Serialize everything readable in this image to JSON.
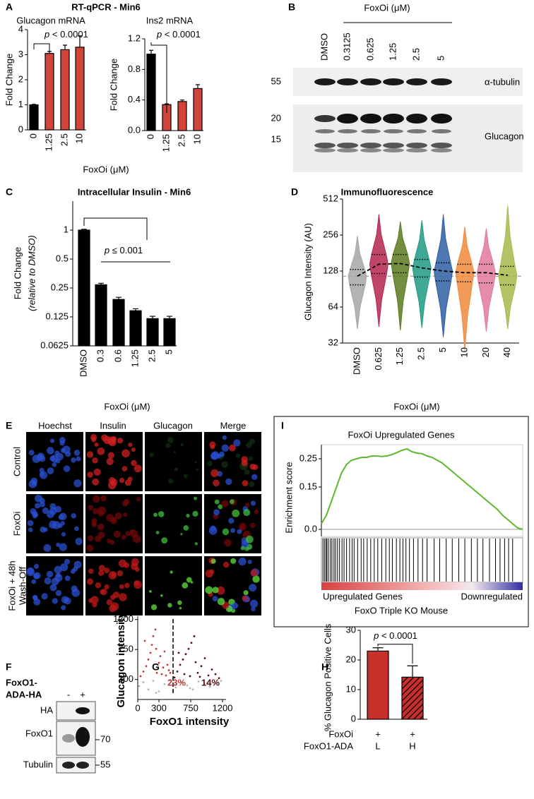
{
  "panel_labels": [
    "A",
    "B",
    "C",
    "D",
    "E",
    "F",
    "G",
    "H",
    "I"
  ],
  "panel_a_title": "RT-qPCR - Min6",
  "blot_b": {
    "treatment_label": "FoxOi (μM)",
    "lanes": [
      "DMSO",
      "0.3125",
      "0.625",
      "1.25",
      "2.5",
      "5"
    ],
    "markers": [
      55,
      20,
      15
    ],
    "bands": [
      "α-tubulin",
      "Glucagon"
    ]
  },
  "micrographs_e": {
    "columns": [
      "Hoechst",
      "Insulin",
      "Glucagon",
      "Merge"
    ],
    "rows": [
      [
        "Control"
      ],
      [
        "FoxOi"
      ],
      [
        "FoxOi + 48h",
        "Wash-Off"
      ]
    ]
  },
  "blot_f": {
    "construct": [
      "FoxO1-",
      "ADA-HA"
    ],
    "lanes": [
      "-",
      "+"
    ],
    "bands": [
      "HA",
      "FoxO1",
      "Tubulin"
    ],
    "markers": [
      70,
      55
    ]
  },
  "chart_data": [
    {
      "type": "bar",
      "title": "Glucagon mRNA",
      "y_label": "Fold Change",
      "x_label": "FoxOi (μM)",
      "categories": [
        "0",
        "1.25",
        "2.5",
        "10"
      ],
      "values": [
        1,
        3.05,
        3.2,
        3.3
      ],
      "errors": [
        0.02,
        0.08,
        0.18,
        0.45
      ],
      "colors": [
        "#000000",
        "#d0443a",
        "#d0443a",
        "#d0443a"
      ],
      "ylim": [
        0,
        4
      ],
      "yticks": [
        0,
        1,
        2,
        3,
        4
      ],
      "annotation": {
        "italic": "p",
        "text": "< 0.0001"
      }
    },
    {
      "type": "bar",
      "title": "Ins2 mRNA",
      "y_label": "Fold Change",
      "categories": [
        "0",
        "1.25",
        "2.5",
        "10"
      ],
      "values": [
        1,
        0.34,
        0.38,
        0.55
      ],
      "errors": [
        0.05,
        0.01,
        0.02,
        0.05
      ],
      "colors": [
        "#000000",
        "#d0443a",
        "#d0443a",
        "#d0443a"
      ],
      "ylim": [
        0,
        1.2
      ],
      "yticks": [
        {
          "value": 0,
          "label": "0.0"
        },
        0.4,
        0.8,
        1.2
      ],
      "annotation": {
        "italic": "p",
        "text": "< 0.0001"
      }
    },
    {
      "type": "bar",
      "title": "Intracellular Insulin - Min6",
      "y_label": [
        "Fold Change",
        "(relative to DMSO)"
      ],
      "x_label": "FoxOi (μM)",
      "categories": [
        "DMSO",
        "0.3",
        "0.6",
        "1.25",
        "2.5",
        "5"
      ],
      "values": [
        1,
        0.27,
        0.19,
        0.145,
        0.12,
        0.12
      ],
      "errors": [
        0.02,
        0.01,
        0.01,
        0.007,
        0.007,
        0.007
      ],
      "color": "#000000",
      "y_scale": "log2",
      "ylim": [
        0.0625,
        2
      ],
      "yticks": [
        0.0625,
        0.125,
        0.25,
        0.5,
        1
      ],
      "annotation": {
        "italic": "p",
        "text": "≤ 0.001"
      }
    },
    {
      "type": "violin",
      "title": "Immunofluorescence",
      "y_label": "Glucagon Intensity (AU)",
      "x_label": "FoxOi (μM)",
      "categories": [
        "DMSO",
        "0.625",
        "1.25",
        "2.5",
        "5",
        "10",
        "20",
        "40"
      ],
      "colors": [
        "#a6a6a6",
        "#b5264f",
        "#5b7a1f",
        "#1f9a83",
        "#2e5fa3",
        "#f08a3c",
        "#e0799a",
        "#a8b84a"
      ],
      "min": [
        42,
        44,
        41,
        43,
        36,
        28,
        40,
        42
      ],
      "q1": [
        98,
        122,
        124,
        114,
        106,
        104,
        102,
        98
      ],
      "median": [
        116,
        146,
        148,
        136,
        128,
        124,
        124,
        118
      ],
      "q3": [
        132,
        176,
        176,
        160,
        150,
        146,
        146,
        140
      ],
      "max": [
        250,
        380,
        330,
        340,
        380,
        300,
        290,
        450
      ],
      "reference_line": 116,
      "y_scale": "log2",
      "ylim": [
        32,
        512
      ],
      "yticks": [
        32,
        64,
        128,
        256,
        512
      ]
    },
    {
      "type": "line",
      "title": "FoxOi Upregulated Genes",
      "y_label": "Enrichment score",
      "x_label": "FoxO Triple KO Mouse",
      "left_label": "Upregulated Genes",
      "right_label": "Downregulated",
      "color": "#5cb82e",
      "x": [
        0,
        1,
        2,
        3,
        4,
        5,
        6,
        7,
        8,
        9,
        10,
        11,
        12,
        13,
        14,
        15,
        16,
        17,
        18,
        19,
        20,
        21,
        22,
        23,
        24,
        25,
        26,
        27,
        28,
        29,
        30,
        31,
        32,
        33,
        34,
        35,
        36,
        37,
        38,
        39,
        40
      ],
      "values": [
        0.02,
        0.05,
        0.1,
        0.15,
        0.2,
        0.23,
        0.245,
        0.25,
        0.255,
        0.255,
        0.26,
        0.26,
        0.258,
        0.26,
        0.265,
        0.272,
        0.28,
        0.285,
        0.275,
        0.27,
        0.268,
        0.26,
        0.255,
        0.245,
        0.235,
        0.22,
        0.205,
        0.19,
        0.175,
        0.16,
        0.145,
        0.13,
        0.115,
        0.1,
        0.085,
        0.07,
        0.05,
        0.035,
        0.02,
        0.005,
        0.0
      ],
      "hits": [
        0.3,
        0.6,
        0.9,
        1.1,
        1.4,
        1.8,
        2.1,
        2.5,
        2.8,
        3.2,
        3.6,
        4.1,
        4.5,
        5.0,
        5.6,
        6.1,
        6.5,
        7.2,
        7.9,
        8.4,
        9.1,
        9.8,
        10.5,
        11.2,
        12.0,
        12.8,
        13.5,
        14.1,
        14.9,
        15.6,
        16.2,
        16.8,
        17.5,
        18.3,
        19.2,
        20.1,
        21.0,
        22.4,
        23.5,
        24.8,
        26.0,
        27.3,
        28.5,
        29.8,
        31.0,
        32.1,
        33.4,
        34.6,
        35.5,
        36.4,
        37.2,
        38.0
      ],
      "xlim": [
        0,
        40
      ],
      "ylim": [
        -0.025,
        0.3
      ],
      "yticks": [
        {
          "value": 0,
          "label": "0.0"
        },
        0.15,
        0.25
      ]
    },
    {
      "type": "scatter",
      "x_label": "FoxO1 intensity",
      "y_label": "Glucagon intensity",
      "xlim": [
        0,
        1250
      ],
      "ylim": [
        0,
        1250
      ],
      "xticks": [
        0,
        300,
        750,
        1200
      ],
      "yticks": [
        300,
        750,
        1200
      ],
      "threshold": 500,
      "series": [
        {
          "label": "23%",
          "color": "#c83a3a",
          "x": [
            40,
            80,
            120,
            150,
            180,
            200,
            220,
            250,
            270,
            300,
            320,
            340,
            360,
            380,
            400,
            420,
            440,
            460,
            100,
            260
          ],
          "y": [
            350,
            420,
            500,
            600,
            700,
            820,
            950,
            1050,
            400,
            550,
            650,
            380,
            480,
            720,
            360,
            520,
            440,
            400,
            880,
            760
          ]
        },
        {
          "label": "14%",
          "color": "#5a1010",
          "x": [
            520,
            560,
            600,
            640,
            680,
            720,
            760,
            800,
            850,
            900,
            950,
            1000,
            1050,
            1100,
            1150,
            580,
            660,
            740,
            820,
            880
          ],
          "y": [
            330,
            420,
            520,
            600,
            680,
            760,
            850,
            950,
            400,
            500,
            620,
            360,
            450,
            380,
            320,
            700,
            380,
            350,
            560,
            340
          ]
        },
        {
          "color": "#b0b8bc",
          "x": [
            20,
            80,
            150,
            220,
            300,
            380,
            460,
            540,
            620,
            700,
            780,
            860,
            940,
            1020,
            1100,
            1180,
            260,
            500,
            740,
            980
          ],
          "y": [
            200,
            260,
            150,
            280,
            120,
            230,
            290,
            180,
            260,
            210,
            150,
            270,
            220,
            190,
            240,
            280,
            100,
            130,
            170,
            250
          ]
        }
      ]
    },
    {
      "type": "bar",
      "y_label": "% Glucagon Positive Cells",
      "values": [
        23,
        14.2
      ],
      "errors": [
        1.1,
        3.8
      ],
      "colors": [
        "#c8302c",
        "#c8302c"
      ],
      "fills": [
        "solid",
        "hatched"
      ],
      "ylim": [
        0,
        30
      ],
      "yticks": [
        0,
        10,
        20,
        30
      ],
      "conditions": [
        {
          "name": "FoxOi",
          "levels": [
            "+",
            "+"
          ]
        },
        {
          "name": "FoxO1-ADA",
          "levels": [
            "L",
            "H"
          ]
        }
      ],
      "annotation": {
        "italic": "p",
        "text": "< 0.0001"
      }
    }
  ]
}
